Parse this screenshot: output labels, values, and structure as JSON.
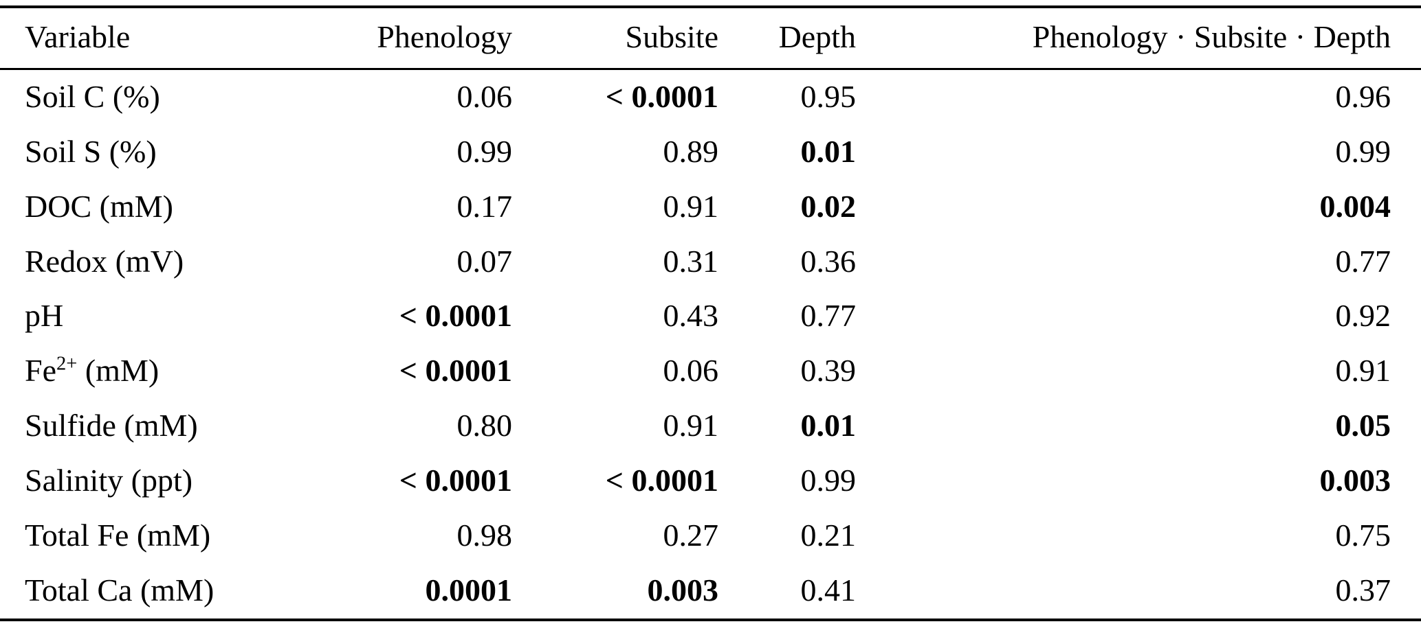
{
  "table": {
    "columns": [
      "Variable",
      "Phenology",
      "Subsite",
      "Depth",
      "Phenology · Subsite · Depth"
    ],
    "rows": [
      {
        "variable": "Soil C (%)",
        "values": [
          {
            "text": "0.06",
            "bold": false
          },
          {
            "text": "< 0.0001",
            "bold": true
          },
          {
            "text": "0.95",
            "bold": false
          },
          {
            "text": "0.96",
            "bold": false
          }
        ]
      },
      {
        "variable": "Soil S (%)",
        "values": [
          {
            "text": "0.99",
            "bold": false
          },
          {
            "text": "0.89",
            "bold": false
          },
          {
            "text": "0.01",
            "bold": true
          },
          {
            "text": "0.99",
            "bold": false
          }
        ]
      },
      {
        "variable": "DOC (mM)",
        "values": [
          {
            "text": "0.17",
            "bold": false
          },
          {
            "text": "0.91",
            "bold": false
          },
          {
            "text": "0.02",
            "bold": true
          },
          {
            "text": "0.004",
            "bold": true
          }
        ]
      },
      {
        "variable": "Redox (mV)",
        "values": [
          {
            "text": "0.07",
            "bold": false
          },
          {
            "text": "0.31",
            "bold": false
          },
          {
            "text": "0.36",
            "bold": false
          },
          {
            "text": "0.77",
            "bold": false
          }
        ]
      },
      {
        "variable": "pH",
        "values": [
          {
            "text": "< 0.0001",
            "bold": true
          },
          {
            "text": "0.43",
            "bold": false
          },
          {
            "text": "0.77",
            "bold": false
          },
          {
            "text": "0.92",
            "bold": false
          }
        ]
      },
      {
        "variable": "Fe^{2+} (mM)",
        "values": [
          {
            "text": "< 0.0001",
            "bold": true
          },
          {
            "text": "0.06",
            "bold": false
          },
          {
            "text": "0.39",
            "bold": false
          },
          {
            "text": "0.91",
            "bold": false
          }
        ]
      },
      {
        "variable": "Sulfide (mM)",
        "values": [
          {
            "text": "0.80",
            "bold": false
          },
          {
            "text": "0.91",
            "bold": false
          },
          {
            "text": "0.01",
            "bold": true
          },
          {
            "text": "0.05",
            "bold": true
          }
        ]
      },
      {
        "variable": "Salinity (ppt)",
        "values": [
          {
            "text": "< 0.0001",
            "bold": true
          },
          {
            "text": "< 0.0001",
            "bold": true
          },
          {
            "text": "0.99",
            "bold": false
          },
          {
            "text": "0.003",
            "bold": true
          }
        ]
      },
      {
        "variable": "Total Fe (mM)",
        "values": [
          {
            "text": "0.98",
            "bold": false
          },
          {
            "text": "0.27",
            "bold": false
          },
          {
            "text": "0.21",
            "bold": false
          },
          {
            "text": "0.75",
            "bold": false
          }
        ]
      },
      {
        "variable": "Total Ca (mM)",
        "values": [
          {
            "text": "0.0001",
            "bold": true
          },
          {
            "text": "0.003",
            "bold": true
          },
          {
            "text": "0.41",
            "bold": false
          },
          {
            "text": "0.37",
            "bold": false
          }
        ]
      }
    ]
  }
}
